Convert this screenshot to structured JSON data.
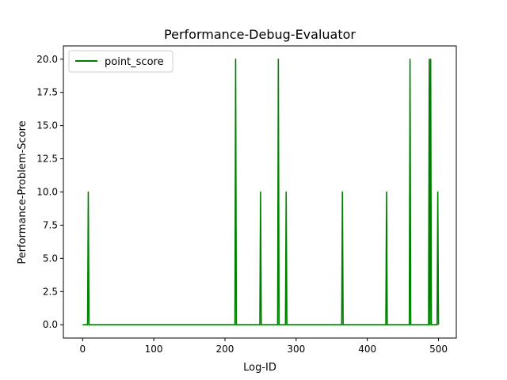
{
  "chart_data": {
    "type": "line",
    "title": "Performance-Debug-Evaluator",
    "xlabel": "Log-ID",
    "ylabel": "Performance-Problem-Score",
    "xlim": [
      -27,
      525
    ],
    "ylim": [
      -1,
      21
    ],
    "xticks": [
      0,
      100,
      200,
      300,
      400,
      500
    ],
    "yticks": [
      0.0,
      2.5,
      5.0,
      7.5,
      10.0,
      12.5,
      15.0,
      17.5,
      20.0
    ],
    "grid": false,
    "legend": "top-left",
    "series": [
      {
        "name": "point_score",
        "color": "#008000",
        "x": [
          0,
          7,
          8,
          9,
          214,
          215,
          216,
          249,
          250,
          251,
          274,
          275,
          276,
          285,
          286,
          287,
          364,
          365,
          366,
          426,
          427,
          428,
          459,
          460,
          461,
          486,
          487,
          488,
          489,
          490,
          497,
          498,
          499,
          500
        ],
        "y": [
          0,
          0,
          10,
          0,
          0,
          20,
          0,
          0,
          10,
          0,
          0,
          20,
          0,
          0,
          10,
          0,
          0,
          10,
          0,
          0,
          10,
          0,
          0,
          20,
          0,
          0,
          20,
          0,
          20,
          0,
          0,
          0,
          10,
          0
        ]
      }
    ]
  }
}
